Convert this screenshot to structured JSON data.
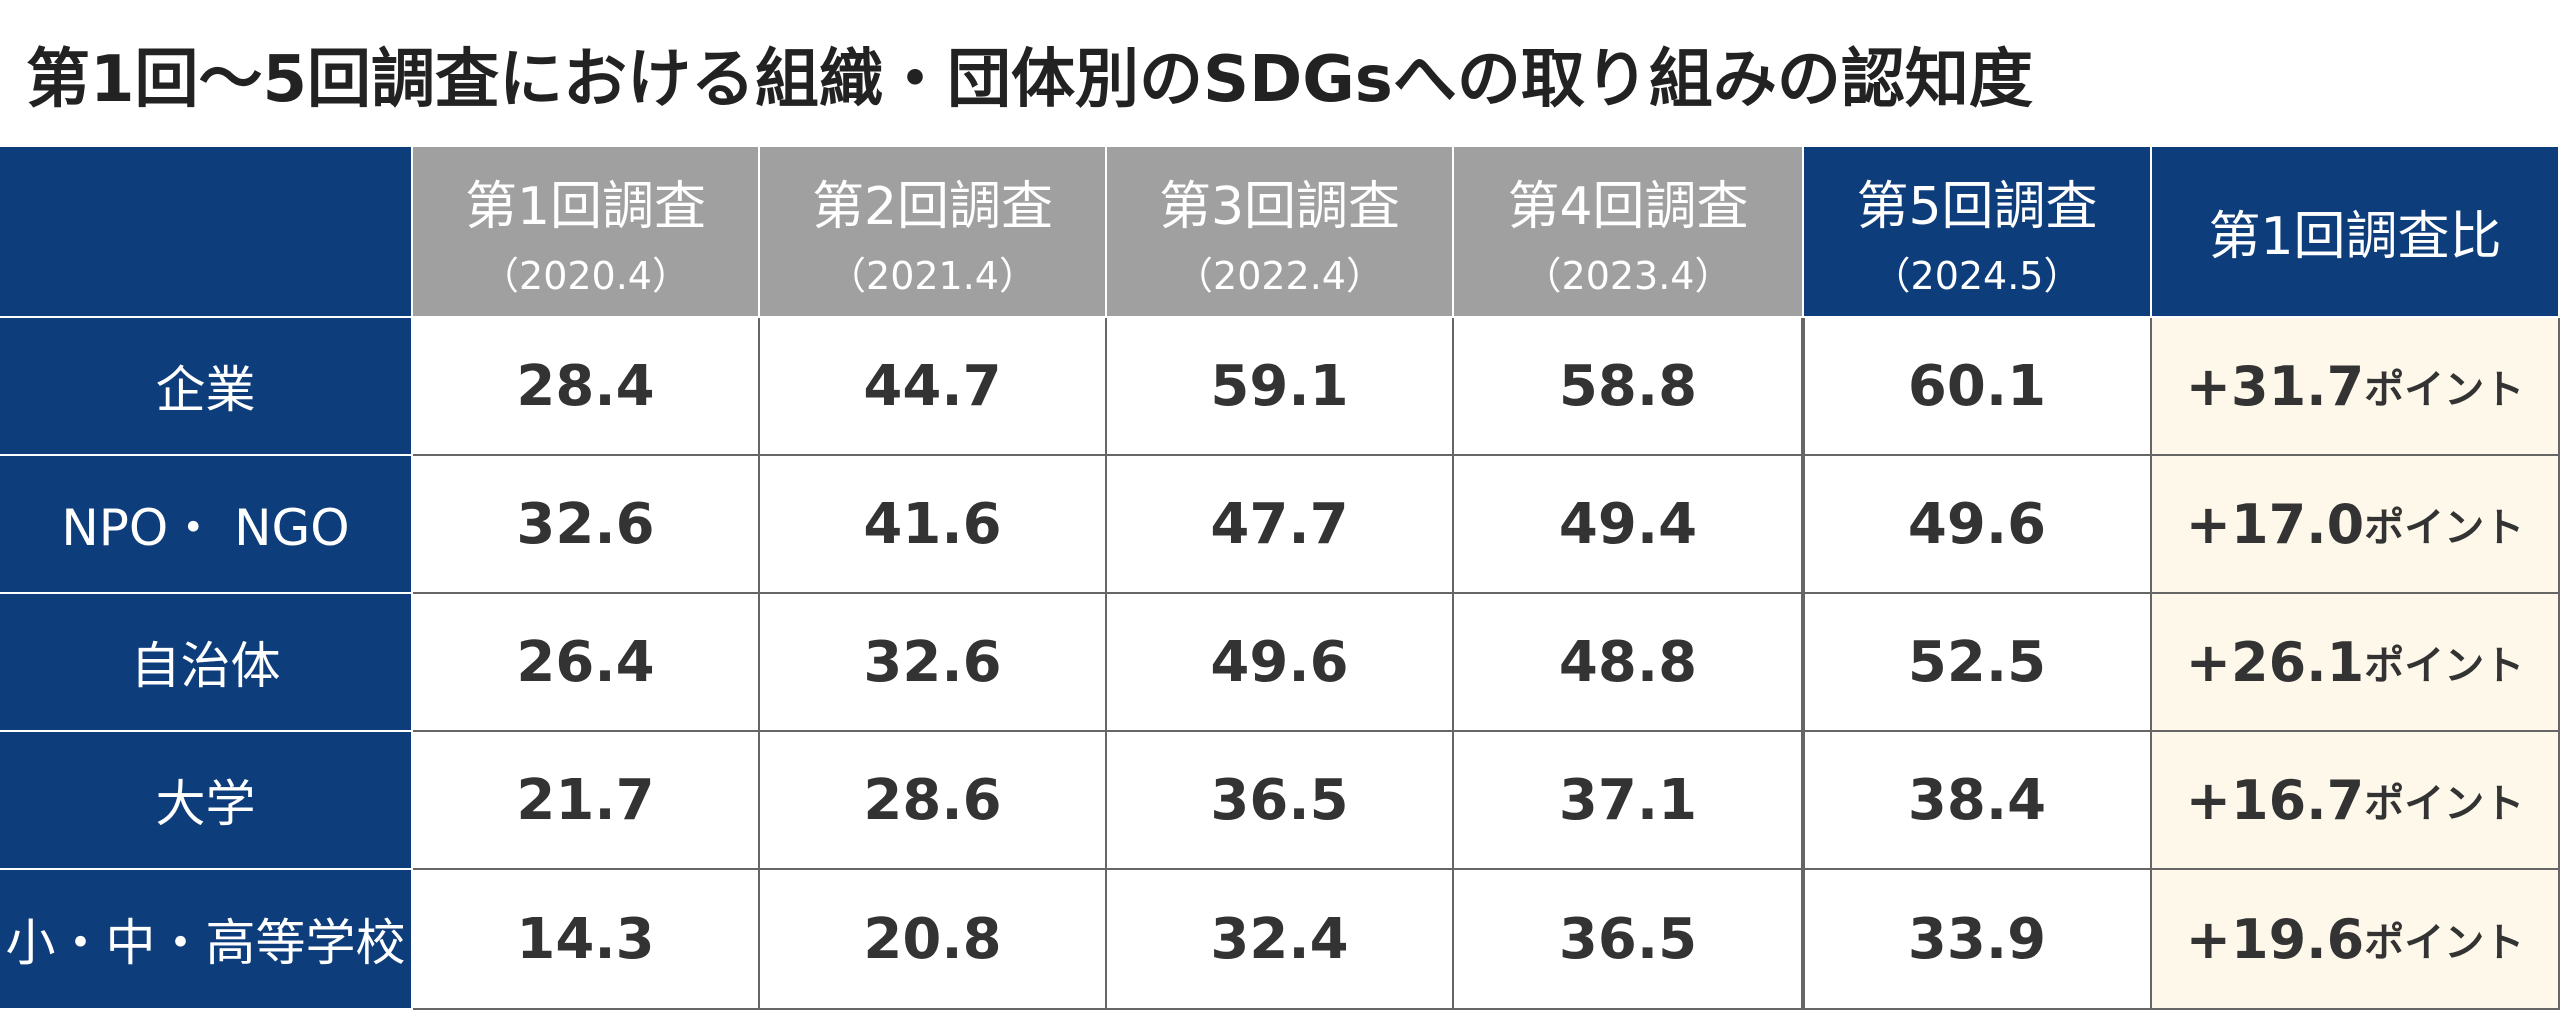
{
  "title": "第1回～5回調査における組織・団体別のSDGsへの取り組みの認知度",
  "table": {
    "header": [
      {
        "label": "第1回調査",
        "date": "（2020.4）"
      },
      {
        "label": "第2回調査",
        "date": "（2021.4）"
      },
      {
        "label": "第3回調査",
        "date": "（2022.4）"
      },
      {
        "label": "第4回調査",
        "date": "（2023.4）"
      },
      {
        "label": "第5回調査",
        "date": "（2024.5）"
      },
      {
        "label": "第1回調査比"
      }
    ],
    "rows": [
      {
        "label": "企業",
        "values": [
          "28.4",
          "44.7",
          "59.1",
          "58.8",
          "60.1"
        ],
        "diff": {
          "value": "+31.7",
          "unit": "ポイント"
        }
      },
      {
        "label": "NPO・ NGO",
        "values": [
          "32.6",
          "41.6",
          "47.7",
          "49.4",
          "49.6"
        ],
        "diff": {
          "value": "+17.0",
          "unit": "ポイント"
        }
      },
      {
        "label": "自治体",
        "values": [
          "26.4",
          "32.6",
          "49.6",
          "48.8",
          "52.5"
        ],
        "diff": {
          "value": "+26.1",
          "unit": "ポイント"
        }
      },
      {
        "label": "大学",
        "values": [
          "21.7",
          "28.6",
          "36.5",
          "37.1",
          "38.4"
        ],
        "diff": {
          "value": "+16.7",
          "unit": "ポイント"
        }
      },
      {
        "label": "小・中・高等学校",
        "values": [
          "14.3",
          "20.8",
          "32.4",
          "36.5",
          "33.9"
        ],
        "diff": {
          "value": "+19.6",
          "unit": "ポイント"
        }
      }
    ]
  }
}
